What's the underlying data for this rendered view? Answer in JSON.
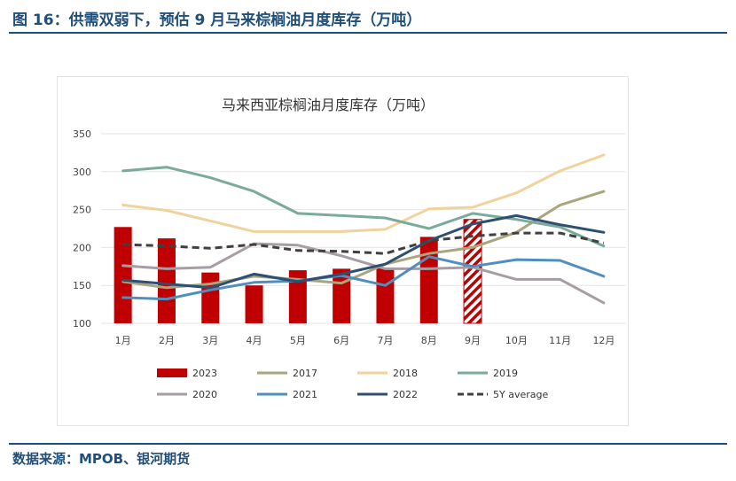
{
  "figure_title": "图 16：供需双弱下，预估 9 月马来棕榈油月度库存（万吨）",
  "source": "数据来源：MPOB、银河期货",
  "colors": {
    "bar2023": "#c00000",
    "2017": "#a9a57c",
    "2018": "#f0d39b",
    "2019": "#7aab9a",
    "2020": "#a89da5",
    "2021": "#4f8fbf",
    "2022": "#2c4f72",
    "avg": "#404040",
    "grid": "#e6e6e6",
    "title": "#1f4e79"
  },
  "chart_data": {
    "type": "bar+line",
    "title": "马来西亚棕榈油月度库存（万吨）",
    "categories": [
      "1月",
      "2月",
      "3月",
      "4月",
      "5月",
      "6月",
      "7月",
      "8月",
      "9月",
      "10月",
      "11月",
      "12月"
    ],
    "ylim": [
      100,
      350
    ],
    "yticks": [
      "100",
      "150",
      "200",
      "250",
      "300",
      "350"
    ],
    "bar_series": {
      "name": "2023",
      "values": [
        227,
        212,
        167,
        150,
        170,
        172,
        173,
        214
      ],
      "forecast_category": "9月",
      "forecast_value": 237
    },
    "series": [
      {
        "name": "2017",
        "key": "2017",
        "values": [
          155,
          147,
          152,
          162,
          158,
          153,
          178,
          192,
          200,
          220,
          256,
          274
        ]
      },
      {
        "name": "2018",
        "key": "2018",
        "values": [
          256,
          249,
          235,
          221,
          221,
          221,
          224,
          251,
          253,
          272,
          301,
          322
        ]
      },
      {
        "name": "2019",
        "key": "2019",
        "values": [
          301,
          306,
          292,
          274,
          245,
          242,
          239,
          225,
          245,
          237,
          227,
          202
        ]
      },
      {
        "name": "2020",
        "key": "2020",
        "values": [
          176,
          172,
          174,
          205,
          203,
          189,
          172,
          172,
          174,
          158,
          158,
          127
        ]
      },
      {
        "name": "2021",
        "key": "2021",
        "values": [
          134,
          132,
          144,
          154,
          156,
          163,
          150,
          188,
          175,
          184,
          183,
          162
        ]
      },
      {
        "name": "2022",
        "key": "2022",
        "values": [
          157,
          152,
          147,
          165,
          155,
          165,
          178,
          209,
          231,
          242,
          230,
          220
        ]
      },
      {
        "name": "5Y average",
        "key": "avg",
        "dashed": true,
        "values": [
          204,
          202,
          199,
          204,
          196,
          195,
          192,
          209,
          215,
          219,
          219,
          206
        ]
      }
    ],
    "legend": [
      "2023",
      "2017",
      "2018",
      "2019",
      "2020",
      "2021",
      "2022",
      "5Y average"
    ]
  }
}
